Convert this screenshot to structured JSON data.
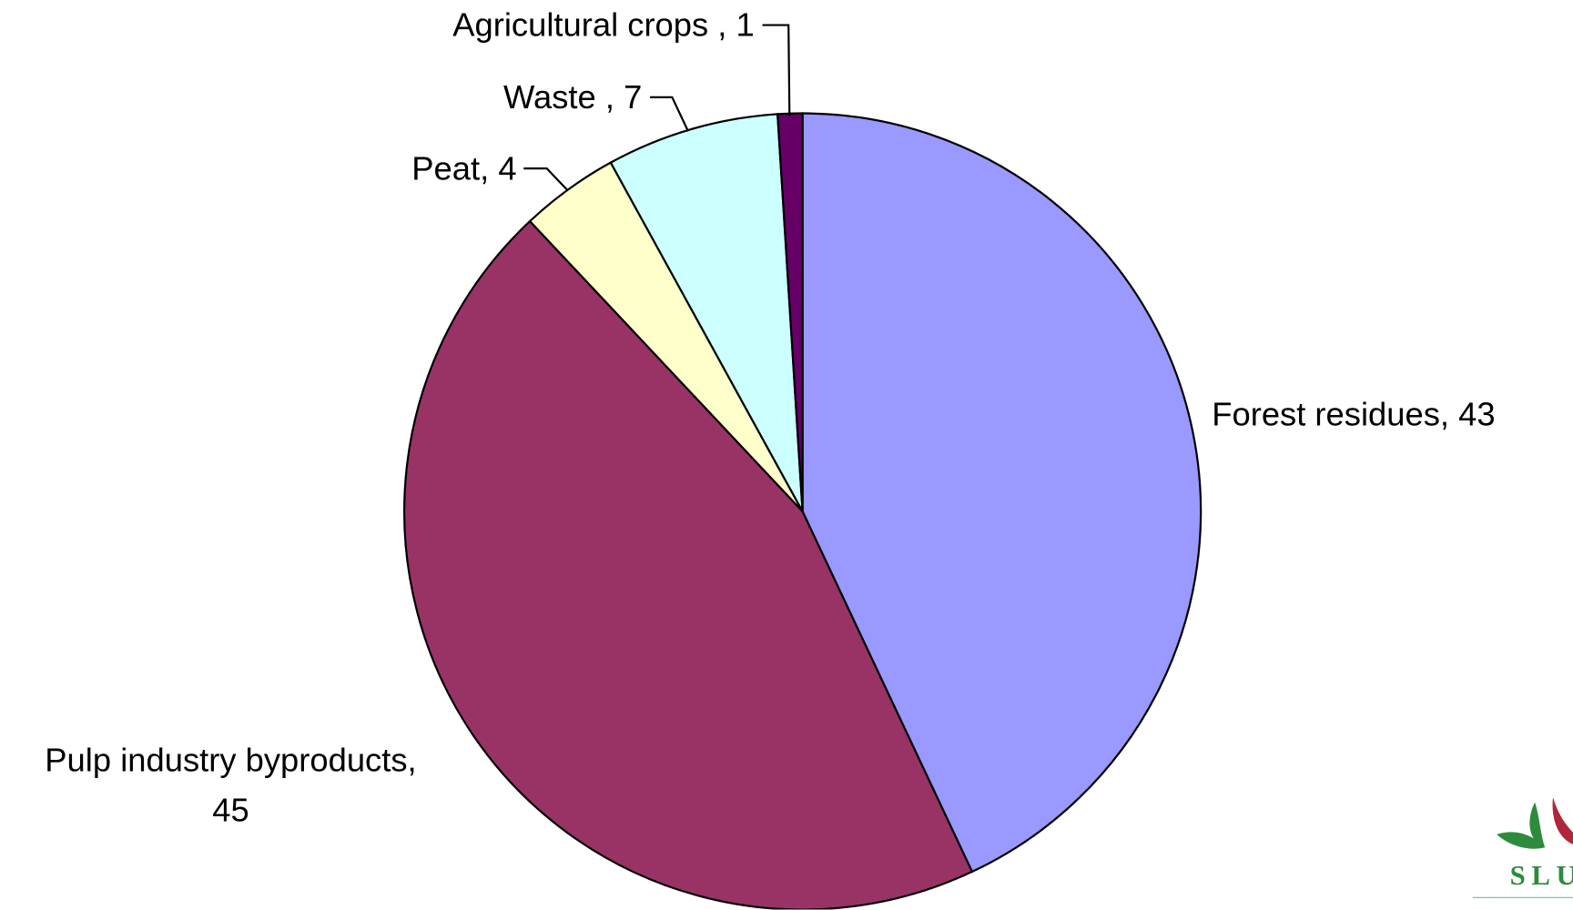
{
  "chart_data": {
    "type": "pie",
    "labels": [
      "Forest residues, 43",
      "Pulp industry byproducts,\n45",
      "Peat, 4",
      "Waste , 7",
      "Agricultural crops , 1"
    ],
    "values": [
      43,
      45,
      4,
      7,
      1
    ],
    "colors": [
      "#9999ff",
      "#993366",
      "#ffffcc",
      "#ccffff",
      "#660066"
    ]
  },
  "logo": "SLU"
}
